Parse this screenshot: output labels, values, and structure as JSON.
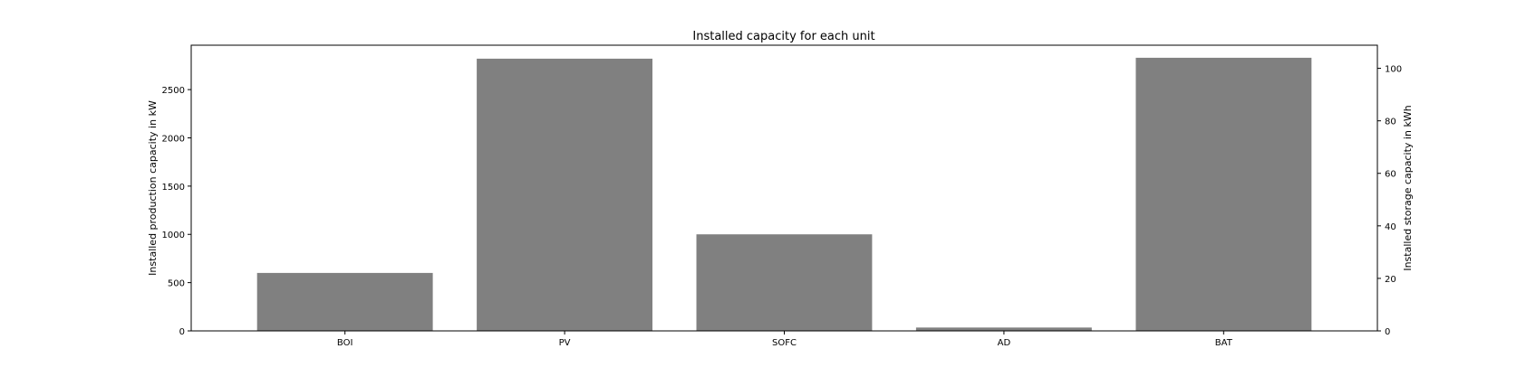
{
  "chart_data": {
    "type": "bar",
    "title": "Installed capacity for each unit",
    "categories": [
      "BOI",
      "PV",
      "SOFC",
      "AD",
      "BAT"
    ],
    "production_units": [
      "BOI",
      "PV",
      "SOFC",
      "AD"
    ],
    "storage_units": [
      "BAT"
    ],
    "values": [
      600,
      2820,
      1000,
      35,
      104
    ],
    "bar_color": "#808080",
    "ylabel": "Installed production capacity in kW",
    "ylabel_right": "Installed storage capacity in kWh",
    "ylim": [
      0,
      2960
    ],
    "ylim_right": [
      0,
      108.8
    ],
    "yticks": [
      0,
      500,
      1000,
      1500,
      2000,
      2500
    ],
    "yticks_right": [
      0,
      20,
      40,
      60,
      80,
      100
    ],
    "grid": false,
    "legend": "none"
  }
}
